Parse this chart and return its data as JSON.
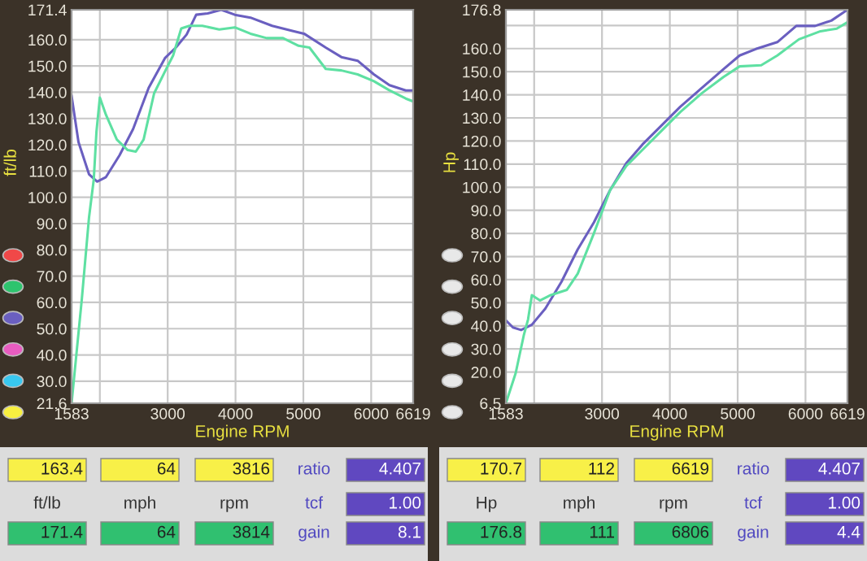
{
  "chart_data": [
    {
      "type": "line",
      "xlabel": "Engine RPM",
      "ylabel": "ft/lb",
      "xlim": [
        1583,
        6619
      ],
      "ylim": [
        21.6,
        171.4
      ],
      "xticks": [
        1583,
        {
          "value": 2000,
          "label": null
        },
        3000,
        4000,
        5000,
        6000,
        6619
      ],
      "yticks": [
        21.6,
        {
          "value": 30,
          "label": "30.0"
        },
        {
          "value": 40,
          "label": "40.0"
        },
        {
          "value": 50,
          "label": "50.0"
        },
        {
          "value": 60,
          "label": "60.0"
        },
        {
          "value": 70,
          "label": "70.0"
        },
        {
          "value": 80,
          "label": "80.0"
        },
        {
          "value": 90,
          "label": "90.0"
        },
        {
          "value": 100,
          "label": "100.0"
        },
        {
          "value": 110,
          "label": "110.0"
        },
        {
          "value": 120,
          "label": "120.0"
        },
        {
          "value": 130,
          "label": "130.0"
        },
        {
          "value": 140,
          "label": "140.0"
        },
        {
          "value": 150,
          "label": "150.0"
        },
        {
          "value": 160,
          "label": "160.0"
        },
        171.4
      ],
      "grid": true,
      "series": [
        {
          "color": "#6a5fc0",
          "x": [
            1583,
            1685,
            1840,
            1960,
            2090,
            2290,
            2490,
            2720,
            2960,
            3120,
            3280,
            3420,
            3590,
            3790,
            3990,
            4220,
            4540,
            4850,
            5010,
            5330,
            5560,
            5800,
            6040,
            6270,
            6510,
            6619
          ],
          "values": [
            138.6,
            121,
            108.8,
            106,
            107.7,
            116,
            126,
            141.7,
            153,
            157,
            162,
            169.5,
            170,
            171.4,
            169.5,
            168.4,
            165.3,
            163.3,
            162.3,
            157,
            153.4,
            152,
            146.8,
            142.7,
            140.7,
            140.7
          ]
        },
        {
          "color": "#5ee0a2",
          "x": [
            1583,
            1735,
            1840,
            1910,
            1950,
            2000,
            2090,
            2250,
            2410,
            2530,
            2645,
            2800,
            2960,
            3080,
            3200,
            3320,
            3510,
            3760,
            3990,
            4220,
            4460,
            4700,
            4930,
            5090,
            5330,
            5560,
            5800,
            6040,
            6270,
            6510,
            6619
          ],
          "values": [
            21.6,
            61.5,
            92.3,
            106.7,
            125,
            138,
            131.4,
            122,
            118,
            117.4,
            122,
            139.6,
            147.9,
            154,
            164.3,
            165.3,
            165.3,
            163.9,
            164.7,
            162.3,
            160.6,
            160.6,
            157.7,
            157,
            148.9,
            148.3,
            146.8,
            144.2,
            140.7,
            137.6,
            136.5
          ]
        }
      ],
      "annotations": [
        "163.4",
        "64",
        "3816",
        "ratio",
        "4.407",
        "ft/lb",
        "mph",
        "rpm",
        "tcf",
        "1.00",
        "171.4",
        "64",
        "3814",
        "gain",
        "8.1"
      ]
    },
    {
      "type": "line",
      "xlabel": "Engine RPM",
      "ylabel": "Hp",
      "xlim": [
        1583,
        6619
      ],
      "ylim": [
        6.5,
        176.8
      ],
      "xticks": [
        1583,
        {
          "value": 2000,
          "label": null
        },
        3000,
        4000,
        5000,
        6000,
        6619
      ],
      "yticks": [
        6.5,
        {
          "value": 20,
          "label": "20.0"
        },
        {
          "value": 30,
          "label": "30.0"
        },
        {
          "value": 40,
          "label": "40.0"
        },
        {
          "value": 50,
          "label": "50.0"
        },
        {
          "value": 60,
          "label": "60.0"
        },
        {
          "value": 70,
          "label": "70.0"
        },
        {
          "value": 80,
          "label": "80.0"
        },
        {
          "value": 90,
          "label": "90.0"
        },
        {
          "value": 100,
          "label": "100.0"
        },
        {
          "value": 110,
          "label": "110.0"
        },
        {
          "value": 120,
          "label": "120.0"
        },
        {
          "value": 130,
          "label": "130.0"
        },
        {
          "value": 140,
          "label": "140.0"
        },
        {
          "value": 150,
          "label": "150.0"
        },
        {
          "value": 160,
          "label": "160.0"
        },
        {
          "value": 170,
          "label": null
        },
        176.8
      ],
      "grid": true,
      "series": [
        {
          "color": "#6a5fc0",
          "x": [
            1583,
            1687,
            1807,
            1966,
            2165,
            2403,
            2642,
            2881,
            3119,
            3358,
            3597,
            3835,
            4153,
            4472,
            4790,
            5029,
            5267,
            5585,
            5864,
            6142,
            6381,
            6619
          ],
          "values": [
            42.4,
            39.3,
            38.2,
            40.5,
            47.5,
            59.1,
            73.1,
            84.8,
            98.7,
            110.4,
            118.5,
            125.5,
            134.8,
            143,
            151.1,
            157,
            159.8,
            162.8,
            169.8,
            169.8,
            172.1,
            176.8
          ]
        },
        {
          "color": "#5ee0a2",
          "x": [
            1583,
            1727,
            1846,
            1910,
            1966,
            2085,
            2244,
            2483,
            2642,
            2881,
            3119,
            3358,
            3597,
            3835,
            4153,
            4472,
            4790,
            5029,
            5347,
            5585,
            5903,
            6221,
            6460,
            6619
          ],
          "values": [
            6.5,
            19.5,
            35.8,
            42.8,
            53.3,
            51,
            53.3,
            55.6,
            62.6,
            80.1,
            98.7,
            109.2,
            116.2,
            123.2,
            132.5,
            140.7,
            147.7,
            152.3,
            152.8,
            157,
            164,
            167.5,
            168.6,
            171.4
          ]
        }
      ],
      "annotations": [
        "170.7",
        "112",
        "6619",
        "ratio",
        "4.407",
        "Hp",
        "mph",
        "rpm",
        "tcf",
        "1.00",
        "176.8",
        "111",
        "6806",
        "gain",
        "4.4"
      ]
    }
  ]
}
